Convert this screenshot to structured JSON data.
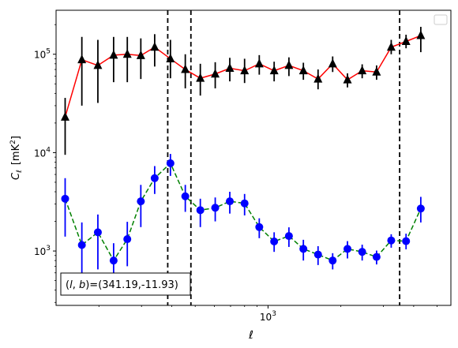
{
  "chart_data": {
    "type": "scatter",
    "x_scale": "log",
    "y_scale": "log",
    "xlabel": "ℓ",
    "ylabel_main": "C",
    "ylabel_sub": "ℓ",
    "ylabel_unit_prefix": "[mK",
    "ylabel_unit_exp": "2",
    "ylabel_unit_suffix": "]",
    "xlim": [
      133,
      5700
    ],
    "ylim": [
      280,
      280000
    ],
    "x_ticks": [
      {
        "value": 1000,
        "base": "10",
        "exp": "3"
      }
    ],
    "y_ticks": [
      {
        "value": 1000,
        "base": "10",
        "exp": "3"
      },
      {
        "value": 10000,
        "base": "10",
        "exp": "4"
      },
      {
        "value": 100000,
        "base": "10",
        "exp": "5"
      }
    ],
    "grid": false,
    "legend": {
      "placement": "top-right",
      "entries": []
    },
    "annotation": "(l, b)=(341.19,-11.93)",
    "annotation_text": {
      "italic_l": "l",
      "comma": ", ",
      "italic_b": "b",
      "rest": ")=(341.19,-11.93)",
      "open": "("
    },
    "vlines": [
      {
        "x": 385,
        "color": "#000000",
        "style": "dashed"
      },
      {
        "x": 480,
        "color": "#000000",
        "style": "dashed"
      },
      {
        "x": 3500,
        "color": "#000000",
        "style": "dashed"
      }
    ],
    "series": [
      {
        "marker": "triangle",
        "marker_color": "#000000",
        "line_color": "#ff0000",
        "line_style": "solid",
        "error_color": "#000000",
        "points": [
          {
            "x": 145,
            "y": 23000,
            "lo": 9500,
            "hi": 36000
          },
          {
            "x": 170,
            "y": 88000,
            "lo": 30000,
            "hi": 150000
          },
          {
            "x": 198,
            "y": 77000,
            "lo": 32000,
            "hi": 140000
          },
          {
            "x": 230,
            "y": 98000,
            "lo": 52000,
            "hi": 150000
          },
          {
            "x": 262,
            "y": 100000,
            "lo": 52000,
            "hi": 150000
          },
          {
            "x": 298,
            "y": 97000,
            "lo": 56000,
            "hi": 145000
          },
          {
            "x": 340,
            "y": 118000,
            "lo": 75000,
            "hi": 160000
          },
          {
            "x": 395,
            "y": 90000,
            "lo": 57000,
            "hi": 140000
          },
          {
            "x": 455,
            "y": 70000,
            "lo": 45000,
            "hi": 100000
          },
          {
            "x": 525,
            "y": 57000,
            "lo": 38000,
            "hi": 80000
          },
          {
            "x": 605,
            "y": 63000,
            "lo": 45000,
            "hi": 83000
          },
          {
            "x": 695,
            "y": 72000,
            "lo": 53000,
            "hi": 92000
          },
          {
            "x": 800,
            "y": 68000,
            "lo": 51000,
            "hi": 90000
          },
          {
            "x": 920,
            "y": 80000,
            "lo": 62000,
            "hi": 98000
          },
          {
            "x": 1060,
            "y": 68000,
            "lo": 53000,
            "hi": 84000
          },
          {
            "x": 1220,
            "y": 77000,
            "lo": 60000,
            "hi": 93000
          },
          {
            "x": 1400,
            "y": 68000,
            "lo": 55000,
            "hi": 82000
          },
          {
            "x": 1610,
            "y": 56000,
            "lo": 44000,
            "hi": 70000
          },
          {
            "x": 1850,
            "y": 80000,
            "lo": 66000,
            "hi": 95000
          },
          {
            "x": 2130,
            "y": 55000,
            "lo": 46000,
            "hi": 64000
          },
          {
            "x": 2450,
            "y": 68000,
            "lo": 57000,
            "hi": 79000
          },
          {
            "x": 2810,
            "y": 66000,
            "lo": 55000,
            "hi": 77000
          },
          {
            "x": 3230,
            "y": 118000,
            "lo": 100000,
            "hi": 140000
          },
          {
            "x": 3720,
            "y": 135000,
            "lo": 115000,
            "hi": 158000
          },
          {
            "x": 4280,
            "y": 155000,
            "lo": 105000,
            "hi": 190000
          }
        ]
      },
      {
        "marker": "circle",
        "marker_color": "#0000ff",
        "line_color": "#008000",
        "line_style": "dashed",
        "error_color": "#0000ff",
        "points": [
          {
            "x": 145,
            "y": 3400,
            "lo": 1400,
            "hi": 5500
          },
          {
            "x": 170,
            "y": 1150,
            "lo": 450,
            "hi": 1950
          },
          {
            "x": 198,
            "y": 1550,
            "lo": 650,
            "hi": 2350
          },
          {
            "x": 230,
            "y": 800,
            "lo": 400,
            "hi": 1200
          },
          {
            "x": 262,
            "y": 1320,
            "lo": 700,
            "hi": 1980
          },
          {
            "x": 298,
            "y": 3200,
            "lo": 1750,
            "hi": 4700
          },
          {
            "x": 340,
            "y": 5500,
            "lo": 3800,
            "hi": 7300
          },
          {
            "x": 395,
            "y": 7800,
            "lo": 5800,
            "hi": 9700
          },
          {
            "x": 455,
            "y": 3600,
            "lo": 2500,
            "hi": 4700
          },
          {
            "x": 525,
            "y": 2600,
            "lo": 1750,
            "hi": 3400
          },
          {
            "x": 605,
            "y": 2750,
            "lo": 2000,
            "hi": 3500
          },
          {
            "x": 695,
            "y": 3200,
            "lo": 2400,
            "hi": 4000
          },
          {
            "x": 800,
            "y": 3050,
            "lo": 2300,
            "hi": 3800
          },
          {
            "x": 920,
            "y": 1750,
            "lo": 1350,
            "hi": 2150
          },
          {
            "x": 1060,
            "y": 1250,
            "lo": 980,
            "hi": 1550
          },
          {
            "x": 1220,
            "y": 1420,
            "lo": 1100,
            "hi": 1740
          },
          {
            "x": 1400,
            "y": 1050,
            "lo": 800,
            "hi": 1300
          },
          {
            "x": 1610,
            "y": 920,
            "lo": 720,
            "hi": 1120
          },
          {
            "x": 1850,
            "y": 800,
            "lo": 650,
            "hi": 950
          },
          {
            "x": 2130,
            "y": 1050,
            "lo": 840,
            "hi": 1260
          },
          {
            "x": 2450,
            "y": 980,
            "lo": 800,
            "hi": 1160
          },
          {
            "x": 2810,
            "y": 870,
            "lo": 730,
            "hi": 1010
          },
          {
            "x": 3230,
            "y": 1280,
            "lo": 1080,
            "hi": 1480
          },
          {
            "x": 3720,
            "y": 1260,
            "lo": 1040,
            "hi": 1500
          },
          {
            "x": 4280,
            "y": 2700,
            "lo": 1950,
            "hi": 3550
          }
        ]
      }
    ]
  }
}
